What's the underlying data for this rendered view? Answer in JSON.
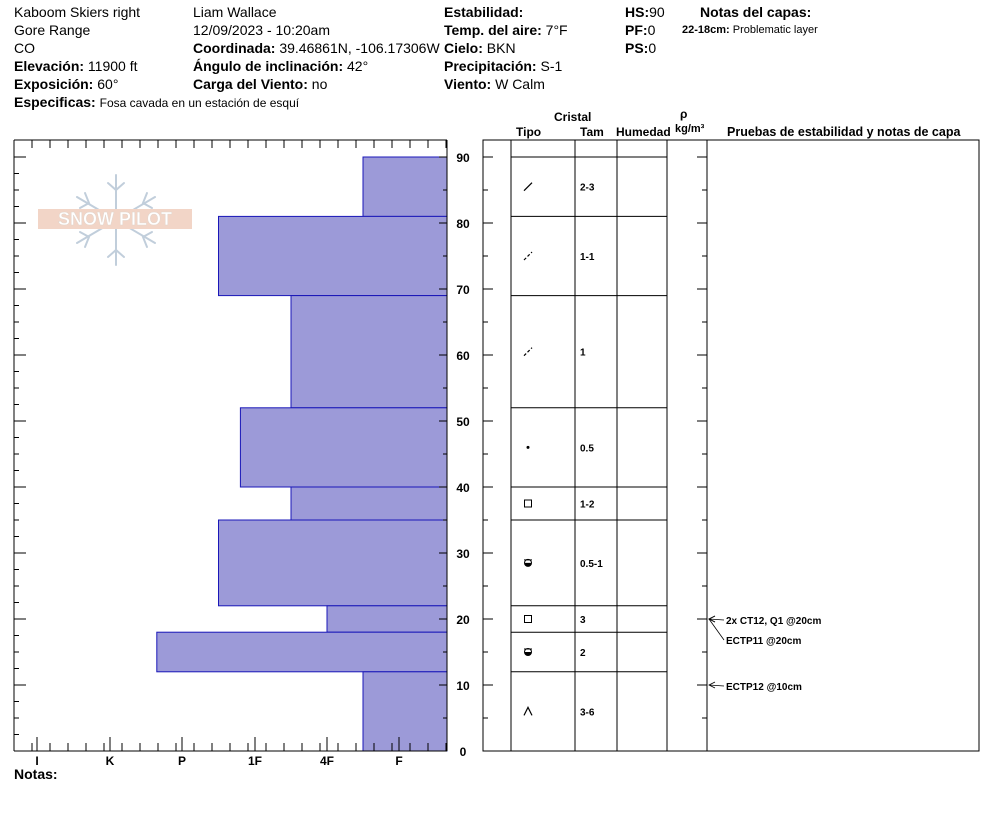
{
  "header": {
    "location": "Kaboom Skiers right",
    "range": "Gore Range",
    "state": "CO",
    "elevation_label": "Elevación:",
    "elevation_value": "11900 ft",
    "aspect_label": "Exposición:",
    "aspect_value": "60°",
    "specifics_label": "Especificas:",
    "specifics_value": "Fosa cavada en un estación de esquí",
    "observer": "Liam Wallace",
    "datetime": "12/09/2023 - 10:20am",
    "coord_label": "Coordinada:",
    "coord_value": "39.46861N, -106.17306W",
    "slope_label": "Ángulo de inclinación:",
    "slope_value": "42°",
    "wind_load_label": "Carga del Viento:",
    "wind_load_value": "no",
    "stability_label": "Estabilidad:",
    "air_temp_label": "Temp. del aire:",
    "air_temp_value": "7°F",
    "sky_label": "Cielo:",
    "sky_value": "BKN",
    "precip_label": "Precipitación:",
    "precip_value": "S-1",
    "wind_label": "Viento:",
    "wind_value": "W Calm",
    "hs_label": "HS:",
    "hs_value": "90",
    "pf_label": "PF:",
    "pf_value": "0",
    "ps_label": "PS:",
    "ps_value": "0",
    "layer_notes_label": "Notas del capas:",
    "layer_note_range": "22-18cm:",
    "layer_note_text": "Problematic layer"
  },
  "logo_text": "SNOW PILOT",
  "columns": {
    "cristal": "Cristal",
    "tipo": "Tipo",
    "tam": "Tam",
    "humedad": "Humedad",
    "rho": "ρ",
    "density_unit": "kg/m³",
    "tests": "Pruebas de estabilidad y notas de capa"
  },
  "footer": {
    "notes_label": "Notas:"
  },
  "colors": {
    "hardness_fill": "#9c9ad8",
    "hardness_stroke": "#1a17b8"
  },
  "chart_data": {
    "type": "bar",
    "orientation": "horizontal",
    "ylim": [
      0,
      90
    ],
    "y_ticks": [
      0,
      10,
      20,
      30,
      40,
      50,
      60,
      70,
      80,
      90
    ],
    "hardness_scale": [
      "I",
      "K",
      "P",
      "1F",
      "4F",
      "F"
    ],
    "layers": [
      {
        "top": 90,
        "bottom": 81,
        "hardness": "F",
        "hardness_value": 0.5,
        "tipo": "slash",
        "tam": "2-3"
      },
      {
        "top": 81,
        "bottom": 69,
        "hardness": "P",
        "hardness_value": 2.5,
        "tipo": "dashed-slash",
        "tam": "1-1"
      },
      {
        "top": 69,
        "bottom": 52,
        "hardness": "1F",
        "hardness_value": 1.5,
        "tipo": "dashed-slash",
        "tam": "1"
      },
      {
        "top": 52,
        "bottom": 40,
        "hardness": "1F-P",
        "hardness_value": 2.2,
        "tipo": "dot",
        "tam": "0.5"
      },
      {
        "top": 40,
        "bottom": 35,
        "hardness": "1F",
        "hardness_value": 1.5,
        "tipo": "square",
        "tam": "1-2"
      },
      {
        "top": 35,
        "bottom": 22,
        "hardness": "P",
        "hardness_value": 2.5,
        "tipo": "half-filled-circle",
        "tam": "0.5-1"
      },
      {
        "top": 22,
        "bottom": 18,
        "hardness": "4F",
        "hardness_value": 1.0,
        "tipo": "square",
        "tam": "3"
      },
      {
        "top": 18,
        "bottom": 12,
        "hardness": "K+",
        "hardness_value": 3.35,
        "tipo": "half-filled-circle",
        "tam": "2"
      },
      {
        "top": 12,
        "bottom": 0,
        "hardness": "F",
        "hardness_value": 0.5,
        "tipo": "caret",
        "tam": "3-6"
      }
    ],
    "tests": [
      {
        "depth": 20,
        "label": "2x CT12, Q1 @20cm"
      },
      {
        "depth": 20,
        "label": "ECTP11 @20cm"
      },
      {
        "depth": 10,
        "label": "ECTP12 @10cm"
      }
    ]
  }
}
